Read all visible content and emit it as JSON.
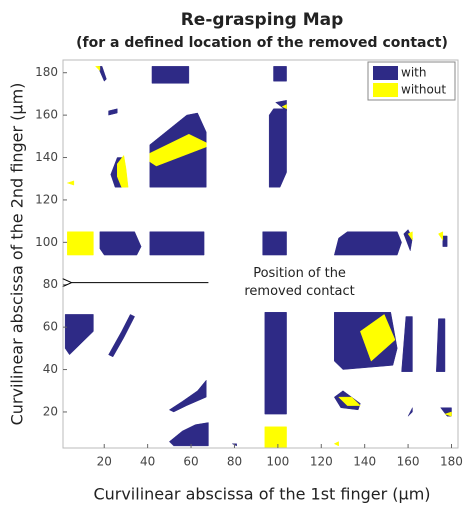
{
  "chart_data": {
    "type": "region",
    "title": [
      "Re-grasping Map",
      "(for a defined location of the removed contact)"
    ],
    "xlabel": "Curvilinear abscissa of the 1st finger (μm)",
    "ylabel": "Curvilinear abscissa of the 2nd finger (μm)",
    "xlim": [
      1,
      183
    ],
    "ylim": [
      3,
      186
    ],
    "xticks": [
      20,
      40,
      60,
      80,
      100,
      120,
      140,
      160,
      180
    ],
    "yticks": [
      20,
      40,
      60,
      80,
      100,
      120,
      140,
      160,
      180
    ],
    "legend": "upper right",
    "annotation": {
      "text": [
        "Position of the",
        "removed contact"
      ],
      "xy": [
        5,
        81
      ],
      "xytext": [
        68,
        81
      ],
      "textpos": [
        110,
        81
      ]
    },
    "series": [
      {
        "name": "with",
        "color": "#2e2a86",
        "polygons": [
          [
            [
              42,
              175
            ],
            [
              59,
              175
            ],
            [
              59,
              183
            ],
            [
              42,
              183
            ]
          ],
          [
            [
              98,
              176
            ],
            [
              104,
              176
            ],
            [
              104,
              183
            ],
            [
              98,
              183
            ]
          ],
          [
            [
              17,
              183
            ],
            [
              19,
              183
            ],
            [
              21,
              177
            ],
            [
              20,
              176
            ]
          ],
          [
            [
              22,
              162
            ],
            [
              26,
              163
            ],
            [
              26,
              161
            ],
            [
              22,
              160
            ]
          ],
          [
            [
              99,
              166
            ],
            [
              104,
              167
            ],
            [
              104,
              162
            ]
          ],
          [
            [
              41,
              146
            ],
            [
              58,
              160
            ],
            [
              63,
              161
            ],
            [
              67,
              152
            ],
            [
              67,
              126
            ],
            [
              41,
              126
            ]
          ],
          [
            [
              96,
              160
            ],
            [
              98,
              163
            ],
            [
              104,
              163
            ],
            [
              104,
              133
            ],
            [
              101,
              126
            ],
            [
              96,
              126
            ]
          ],
          [
            [
              23,
              132
            ],
            [
              26,
              140
            ],
            [
              29,
              140
            ],
            [
              30,
              126
            ],
            [
              25,
              126
            ]
          ],
          [
            [
              18,
              105
            ],
            [
              34,
              105
            ],
            [
              37,
              98
            ],
            [
              35,
              94
            ],
            [
              20,
              94
            ],
            [
              18,
              97
            ]
          ],
          [
            [
              41,
              94
            ],
            [
              66,
              94
            ],
            [
              66,
              105
            ],
            [
              41,
              105
            ]
          ],
          [
            [
              93,
              94
            ],
            [
              104,
              94
            ],
            [
              104,
              105
            ],
            [
              93,
              105
            ]
          ],
          [
            [
              128,
              102
            ],
            [
              132,
              105
            ],
            [
              155,
              105
            ],
            [
              157,
              100
            ],
            [
              155,
              94
            ],
            [
              126,
              94
            ]
          ],
          [
            [
              158,
              104
            ],
            [
              160,
              106
            ],
            [
              162,
              102
            ],
            [
              161,
              96
            ]
          ],
          [
            [
              176,
              103
            ],
            [
              178,
              103
            ],
            [
              178,
              98
            ],
            [
              176,
              98
            ]
          ],
          [
            [
              2,
              66
            ],
            [
              15,
              66
            ],
            [
              15,
              58
            ],
            [
              4,
              47
            ],
            [
              2,
              50
            ]
          ],
          [
            [
              22,
              47
            ],
            [
              28,
              58
            ],
            [
              32,
              66
            ],
            [
              34,
              65
            ],
            [
              29,
              55
            ],
            [
              24,
              46
            ]
          ],
          [
            [
              94,
              19
            ],
            [
              104,
              19
            ],
            [
              104,
              67
            ],
            [
              94,
              67
            ]
          ],
          [
            [
              126,
              67
            ],
            [
              152,
              67
            ],
            [
              155,
              50
            ],
            [
              153,
              42
            ],
            [
              130,
              40
            ],
            [
              126,
              44
            ]
          ],
          [
            [
              157,
              39
            ],
            [
              162,
              39
            ],
            [
              162,
              65
            ],
            [
              159,
              65
            ]
          ],
          [
            [
              173,
              39
            ],
            [
              177,
              39
            ],
            [
              177,
              64
            ],
            [
              174,
              64
            ]
          ],
          [
            [
              50,
              21
            ],
            [
              56,
              25
            ],
            [
              63,
              30
            ],
            [
              67,
              35
            ],
            [
              67,
              27
            ],
            [
              58,
              23
            ],
            [
              52,
              20
            ]
          ],
          [
            [
              126,
              27
            ],
            [
              130,
              30
            ],
            [
              138,
              24
            ],
            [
              137,
              21
            ],
            [
              129,
              22
            ]
          ],
          [
            [
              160,
              18
            ],
            [
              162,
              22
            ],
            [
              162,
              20
            ]
          ],
          [
            [
              175,
              22
            ],
            [
              180,
              22
            ],
            [
              180,
              18
            ],
            [
              178,
              18
            ]
          ],
          [
            [
              50,
              6
            ],
            [
              56,
              11
            ],
            [
              62,
              14
            ],
            [
              68,
              15
            ],
            [
              68,
              4
            ],
            [
              52,
              4
            ]
          ],
          [
            [
              79,
              5
            ],
            [
              81,
              5
            ],
            [
              81,
              4
            ]
          ]
        ]
      },
      {
        "name": "without",
        "color": "#ffff00",
        "polygons": [
          [
            [
              16,
              183
            ],
            [
              18,
              183
            ],
            [
              18,
              181
            ]
          ],
          [
            [
              102,
              164
            ],
            [
              104,
              165
            ],
            [
              104,
              163
            ]
          ],
          [
            [
              41,
              142
            ],
            [
              59,
              151
            ],
            [
              67,
              147
            ],
            [
              67,
              145
            ],
            [
              44,
              136
            ],
            [
              41,
              138
            ]
          ],
          [
            [
              26,
              137
            ],
            [
              29,
              141
            ],
            [
              30,
              135
            ],
            [
              31,
              126
            ],
            [
              28,
              126
            ],
            [
              26,
              131
            ]
          ],
          [
            [
              3,
              128
            ],
            [
              6,
              129
            ],
            [
              6,
              127
            ]
          ],
          [
            [
              3,
              94
            ],
            [
              15,
              94
            ],
            [
              15,
              105
            ],
            [
              3,
              105
            ]
          ],
          [
            [
              160,
              104
            ],
            [
              162,
              105
            ],
            [
              162,
              101
            ]
          ],
          [
            [
              174,
              104
            ],
            [
              176,
              105
            ],
            [
              176,
              101
            ]
          ],
          [
            [
              94,
              3
            ],
            [
              104,
              3
            ],
            [
              104,
              13
            ],
            [
              94,
              13
            ]
          ],
          [
            [
              138,
              58
            ],
            [
              149,
              66
            ],
            [
              154,
              54
            ],
            [
              143,
              44
            ]
          ],
          [
            [
              128,
              27
            ],
            [
              134,
              27
            ],
            [
              138,
              23
            ],
            [
              132,
              23
            ]
          ],
          [
            [
              177,
              19
            ],
            [
              180,
              20
            ],
            [
              180,
              18
            ]
          ],
          [
            [
              126,
              5
            ],
            [
              128,
              6
            ],
            [
              128,
              4
            ]
          ]
        ]
      }
    ]
  }
}
